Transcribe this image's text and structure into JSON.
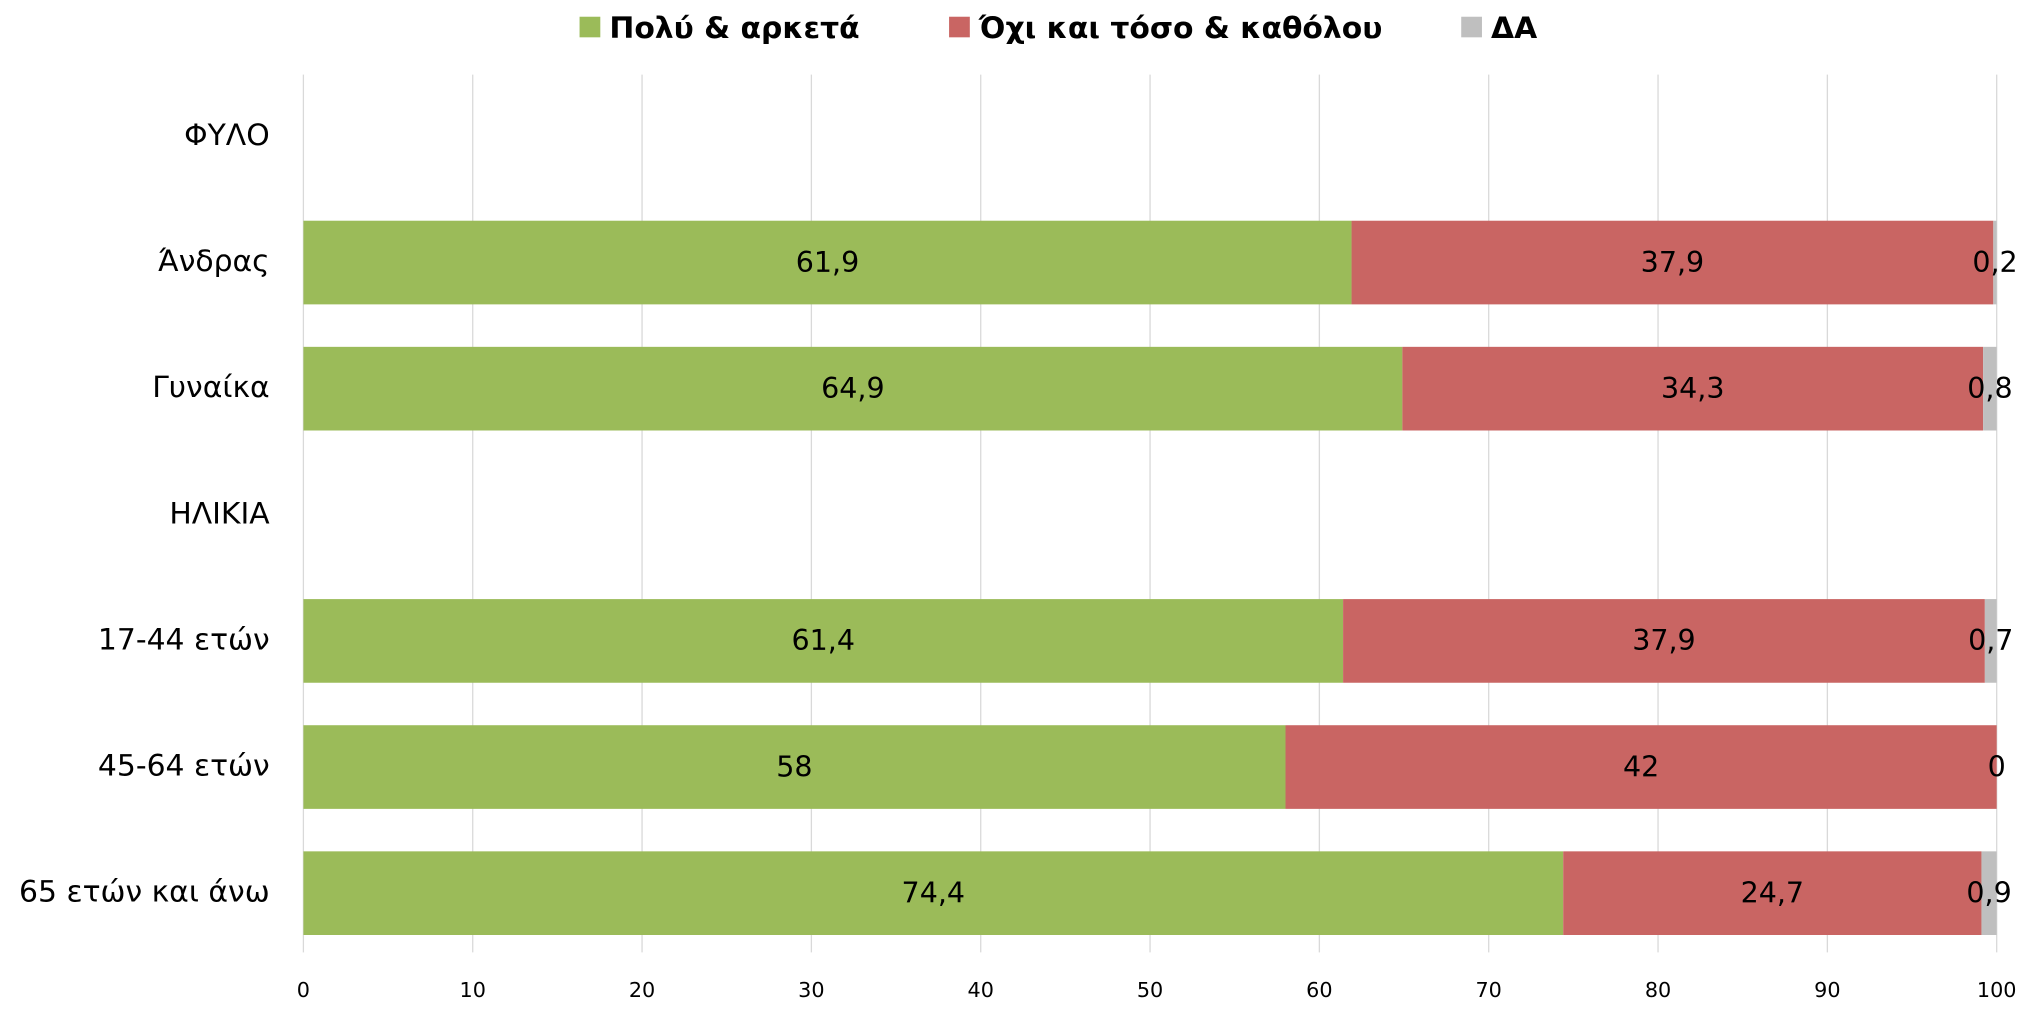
{
  "chart_data": {
    "type": "stacked-barh",
    "categories": [
      "ΦΥΛΟ",
      "Άνδρας",
      "Γυναίκα",
      "ΗΛΙΚΙΑ",
      "17-44 ετών",
      "45-64 ετών",
      "65 ετών και άνω"
    ],
    "series": [
      {
        "name": "Πολύ & αρκετά",
        "color": "#9bbb59",
        "values": [
          null,
          61.9,
          64.9,
          null,
          61.4,
          58,
          74.4
        ],
        "value_labels": [
          null,
          "61,9",
          "64,9",
          null,
          "61,4",
          "58",
          "74,4"
        ]
      },
      {
        "name": "Όχι και τόσο & καθόλου",
        "color": "#c96563",
        "values": [
          null,
          37.9,
          34.3,
          null,
          37.9,
          42,
          24.7
        ],
        "value_labels": [
          null,
          "37,9",
          "34,3",
          null,
          "37,9",
          "42",
          "24,7"
        ]
      },
      {
        "name": "ΔΑ",
        "color": "#bfbfbf",
        "values": [
          null,
          0.2,
          0.8,
          null,
          0.7,
          0,
          0.9
        ],
        "value_labels": [
          null,
          "0,2",
          "0,8",
          null,
          "0,7",
          "0",
          "0,9"
        ]
      }
    ],
    "xlim": [
      0,
      100
    ],
    "xticks": [
      0,
      10,
      20,
      30,
      40,
      50,
      60,
      70,
      80,
      90,
      100
    ],
    "grid": true,
    "legend": "top"
  }
}
